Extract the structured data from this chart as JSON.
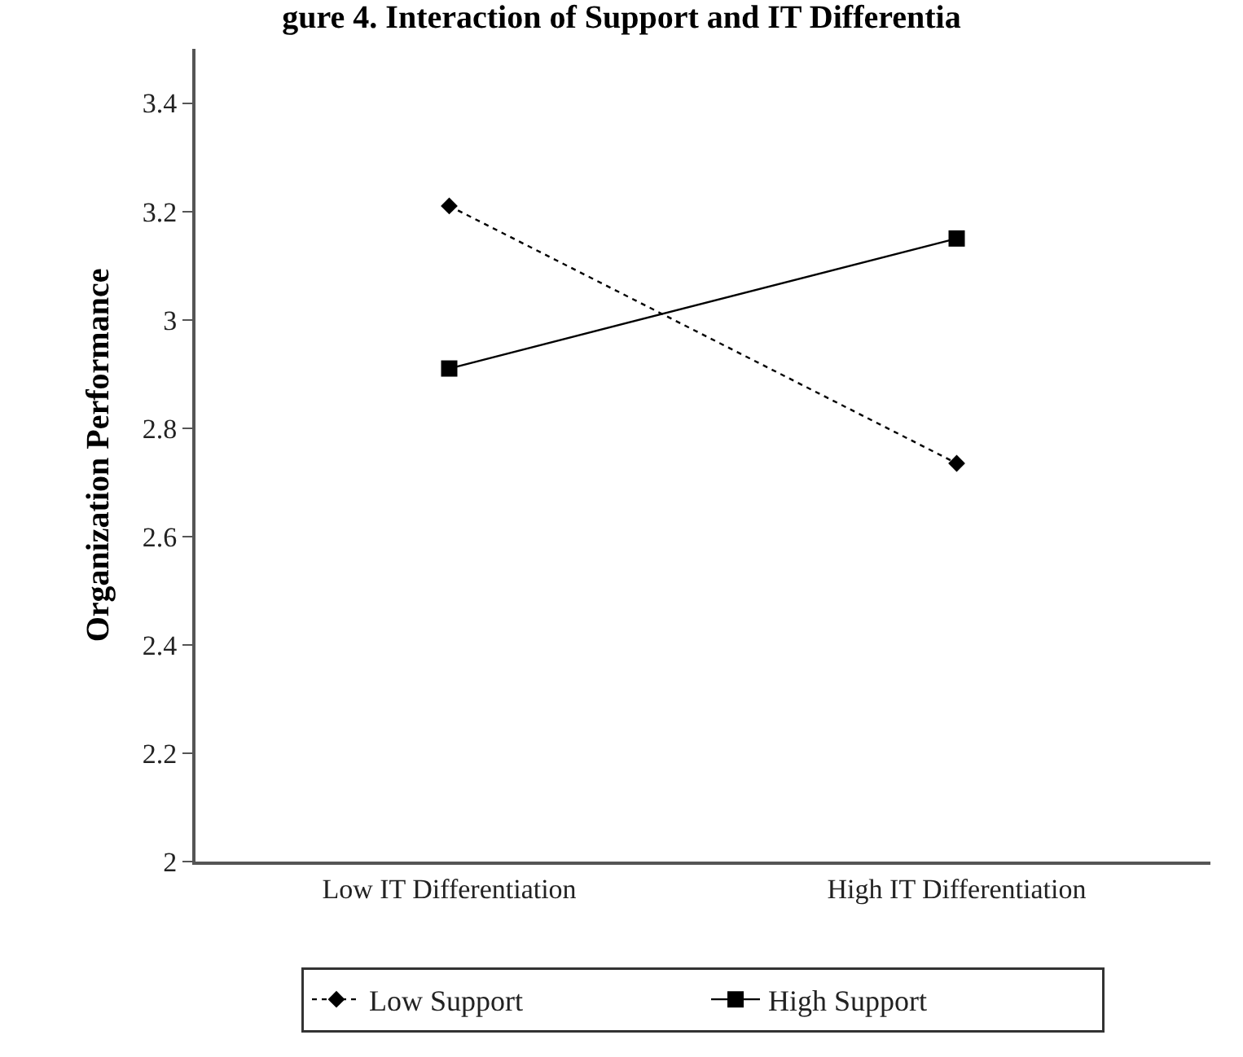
{
  "chart_data": {
    "type": "line",
    "title": "gure 4. Interaction of Support and IT Differentia",
    "ylabel": "Organization Performance",
    "categories": [
      "Low IT Differentiation",
      "High IT Differentiation"
    ],
    "series": [
      {
        "name": "Low Support",
        "color": "#000000",
        "values": [
          3.21,
          2.735
        ],
        "marker": "diamond",
        "line_style": "dotted"
      },
      {
        "name": "High Support",
        "color": "#000000",
        "values": [
          2.91,
          3.15
        ],
        "marker": "square",
        "line_style": "solid"
      }
    ],
    "ylim": [
      2,
      3.5
    ],
    "yticks": [
      2,
      {
        "value": 2.2,
        "label": "2.2"
      },
      {
        "value": 2.4,
        "label": "2.4"
      },
      {
        "value": 2.6,
        "label": "2.6"
      },
      {
        "value": 2.8,
        "label": "2.8"
      },
      3,
      {
        "value": 3.2,
        "label": "3.2"
      },
      {
        "value": 3.4,
        "label": "3.4"
      }
    ],
    "legend": "bottom"
  }
}
